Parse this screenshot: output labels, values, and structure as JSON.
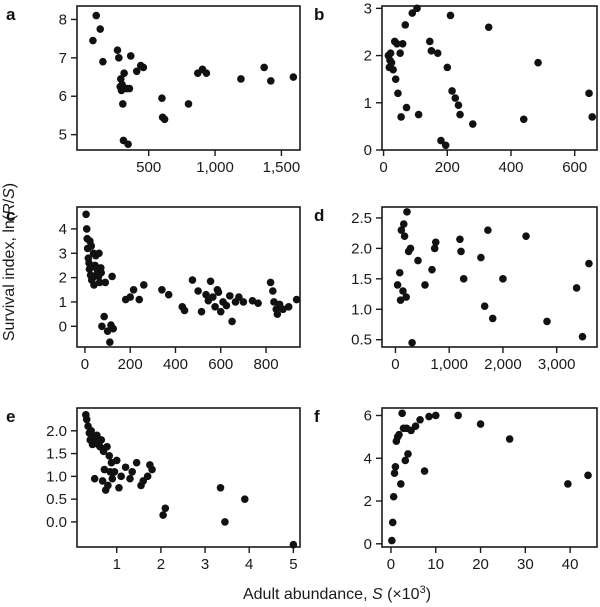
{
  "figure": {
    "ylabel_prefix": "Survival index, ln(",
    "ylabel_var1": "R",
    "ylabel_slash": "/",
    "ylabel_var2": "S",
    "ylabel_suffix": ")",
    "xlabel_prefix": "Adult abundance, ",
    "xlabel_var": "S",
    "xlabel_mid": " (×10",
    "xlabel_sup": "3",
    "xlabel_suffix": ")"
  },
  "chart_data": [
    {
      "panel": "a",
      "type": "scatter",
      "xlim": [
        -40,
        1640
      ],
      "ylim": [
        4.6,
        8.35
      ],
      "xticks": [
        500,
        1000,
        1500
      ],
      "xtick_labels": [
        "500",
        "1,000",
        "1,500"
      ],
      "yticks": [
        5,
        6,
        7,
        8
      ],
      "ytick_labels": [
        "5",
        "6",
        "7",
        "8"
      ],
      "points": [
        [
          80,
          7.45
        ],
        [
          105,
          8.1
        ],
        [
          135,
          7.75
        ],
        [
          155,
          6.9
        ],
        [
          265,
          7.2
        ],
        [
          275,
          7.0
        ],
        [
          285,
          6.25
        ],
        [
          290,
          6.45
        ],
        [
          295,
          6.15
        ],
        [
          300,
          6.3
        ],
        [
          305,
          5.8
        ],
        [
          310,
          4.85
        ],
        [
          315,
          6.6
        ],
        [
          335,
          6.2
        ],
        [
          345,
          4.75
        ],
        [
          355,
          6.2
        ],
        [
          365,
          7.05
        ],
        [
          410,
          6.65
        ],
        [
          440,
          6.8
        ],
        [
          460,
          6.75
        ],
        [
          600,
          5.95
        ],
        [
          605,
          5.45
        ],
        [
          620,
          5.4
        ],
        [
          800,
          5.8
        ],
        [
          870,
          6.6
        ],
        [
          905,
          6.7
        ],
        [
          935,
          6.6
        ],
        [
          1195,
          6.45
        ],
        [
          1370,
          6.75
        ],
        [
          1420,
          6.4
        ],
        [
          1590,
          6.5
        ]
      ]
    },
    {
      "panel": "b",
      "type": "scatter",
      "xlim": [
        -5,
        670
      ],
      "ylim": [
        0,
        3.05
      ],
      "xticks": [
        0,
        200,
        400,
        600
      ],
      "xtick_labels": [
        "0",
        "200",
        "400",
        "600"
      ],
      "yticks": [
        0,
        1,
        2,
        3
      ],
      "ytick_labels": [
        "0",
        "1",
        "2",
        "3"
      ],
      "points": [
        [
          15,
          2.0
        ],
        [
          18,
          1.75
        ],
        [
          20,
          1.9
        ],
        [
          22,
          2.05
        ],
        [
          25,
          1.85
        ],
        [
          30,
          1.7
        ],
        [
          35,
          2.3
        ],
        [
          38,
          1.5
        ],
        [
          42,
          2.25
        ],
        [
          45,
          1.2
        ],
        [
          52,
          2.05
        ],
        [
          55,
          0.7
        ],
        [
          60,
          2.25
        ],
        [
          68,
          2.65
        ],
        [
          72,
          0.9
        ],
        [
          90,
          2.9
        ],
        [
          105,
          3.0
        ],
        [
          110,
          0.75
        ],
        [
          145,
          2.3
        ],
        [
          150,
          2.1
        ],
        [
          170,
          2.05
        ],
        [
          180,
          0.2
        ],
        [
          195,
          0.1
        ],
        [
          200,
          1.75
        ],
        [
          210,
          2.85
        ],
        [
          215,
          1.25
        ],
        [
          225,
          1.1
        ],
        [
          235,
          0.95
        ],
        [
          240,
          0.75
        ],
        [
          280,
          0.55
        ],
        [
          330,
          2.6
        ],
        [
          440,
          0.65
        ],
        [
          485,
          1.85
        ],
        [
          645,
          1.2
        ],
        [
          655,
          0.7
        ]
      ]
    },
    {
      "panel": "c",
      "type": "scatter",
      "xlim": [
        -35,
        950
      ],
      "ylim": [
        -0.85,
        4.9
      ],
      "xticks": [
        0,
        200,
        400,
        600,
        800
      ],
      "xtick_labels": [
        "0",
        "200",
        "400",
        "600",
        "800"
      ],
      "yticks": [
        0,
        1,
        2,
        3,
        4
      ],
      "ytick_labels": [
        "0",
        "1",
        "2",
        "3",
        "4"
      ],
      "points": [
        [
          5,
          4.6
        ],
        [
          8,
          4.0
        ],
        [
          10,
          3.6
        ],
        [
          12,
          3.2
        ],
        [
          15,
          2.8
        ],
        [
          18,
          2.6
        ],
        [
          20,
          2.35
        ],
        [
          22,
          3.5
        ],
        [
          25,
          2.1
        ],
        [
          28,
          3.3
        ],
        [
          30,
          1.9
        ],
        [
          35,
          2.0
        ],
        [
          38,
          3.0
        ],
        [
          40,
          1.7
        ],
        [
          45,
          2.5
        ],
        [
          48,
          2.9
        ],
        [
          50,
          2.4
        ],
        [
          55,
          2.2
        ],
        [
          60,
          2.05
        ],
        [
          62,
          3.0
        ],
        [
          65,
          1.8
        ],
        [
          70,
          2.4
        ],
        [
          72,
          2.2
        ],
        [
          75,
          0.0
        ],
        [
          85,
          0.4
        ],
        [
          90,
          1.8
        ],
        [
          100,
          -0.2
        ],
        [
          110,
          -0.65
        ],
        [
          115,
          0.05
        ],
        [
          120,
          2.05
        ],
        [
          125,
          -0.1
        ],
        [
          180,
          1.1
        ],
        [
          200,
          1.2
        ],
        [
          215,
          1.5
        ],
        [
          240,
          1.1
        ],
        [
          260,
          1.7
        ],
        [
          340,
          1.5
        ],
        [
          370,
          1.3
        ],
        [
          430,
          0.8
        ],
        [
          440,
          0.65
        ],
        [
          475,
          1.9
        ],
        [
          500,
          1.45
        ],
        [
          515,
          0.6
        ],
        [
          535,
          1.3
        ],
        [
          545,
          1.05
        ],
        [
          555,
          1.85
        ],
        [
          565,
          1.2
        ],
        [
          575,
          0.8
        ],
        [
          585,
          1.5
        ],
        [
          590,
          1.4
        ],
        [
          600,
          0.6
        ],
        [
          610,
          1.0
        ],
        [
          625,
          0.85
        ],
        [
          640,
          1.25
        ],
        [
          650,
          0.2
        ],
        [
          665,
          1.0
        ],
        [
          680,
          1.2
        ],
        [
          700,
          1.0
        ],
        [
          740,
          1.05
        ],
        [
          765,
          0.95
        ],
        [
          820,
          1.8
        ],
        [
          830,
          1.45
        ],
        [
          835,
          1.0
        ],
        [
          845,
          0.7
        ],
        [
          850,
          0.5
        ],
        [
          860,
          0.9
        ],
        [
          875,
          0.7
        ],
        [
          900,
          0.8
        ],
        [
          935,
          1.1
        ]
      ]
    },
    {
      "panel": "d",
      "type": "scatter",
      "xlim": [
        -250,
        3750
      ],
      "ylim": [
        0.38,
        2.68
      ],
      "xticks": [
        0,
        1000,
        2000,
        3000
      ],
      "xtick_labels": [
        "0",
        "1,000",
        "2,000",
        "3,000"
      ],
      "yticks": [
        0.5,
        1.0,
        1.5,
        2.0,
        2.5
      ],
      "ytick_labels": [
        "0.5",
        "1.0",
        "1.5",
        "2.0",
        "2.5"
      ],
      "points": [
        [
          40,
          1.4
        ],
        [
          80,
          1.6
        ],
        [
          95,
          1.15
        ],
        [
          110,
          2.3
        ],
        [
          140,
          1.3
        ],
        [
          155,
          2.4
        ],
        [
          170,
          2.2
        ],
        [
          200,
          1.2
        ],
        [
          215,
          2.6
        ],
        [
          245,
          1.95
        ],
        [
          280,
          2.0
        ],
        [
          310,
          0.45
        ],
        [
          420,
          1.8
        ],
        [
          550,
          1.4
        ],
        [
          680,
          1.65
        ],
        [
          730,
          2.0
        ],
        [
          750,
          2.1
        ],
        [
          1200,
          2.15
        ],
        [
          1220,
          1.95
        ],
        [
          1270,
          1.5
        ],
        [
          1590,
          1.85
        ],
        [
          1660,
          1.05
        ],
        [
          1720,
          2.3
        ],
        [
          1810,
          0.85
        ],
        [
          2000,
          1.5
        ],
        [
          2430,
          2.2
        ],
        [
          2820,
          0.8
        ],
        [
          3370,
          1.35
        ],
        [
          3480,
          0.55
        ],
        [
          3600,
          1.75
        ]
      ]
    },
    {
      "panel": "e",
      "type": "scatter",
      "xlim": [
        0.1,
        5.15
      ],
      "ylim": [
        -0.55,
        2.5
      ],
      "xticks": [
        1,
        2,
        3,
        4,
        5
      ],
      "xtick_labels": [
        "1",
        "2",
        "3",
        "4",
        "5"
      ],
      "yticks": [
        0.0,
        0.5,
        1.0,
        1.5,
        2.0
      ],
      "ytick_labels": [
        "0.0",
        "0.5",
        "1.0",
        "1.5",
        "2.0"
      ],
      "points": [
        [
          0.3,
          2.35
        ],
        [
          0.32,
          2.25
        ],
        [
          0.35,
          2.1
        ],
        [
          0.38,
          1.95
        ],
        [
          0.4,
          1.8
        ],
        [
          0.42,
          2.0
        ],
        [
          0.45,
          1.7
        ],
        [
          0.48,
          1.85
        ],
        [
          0.5,
          0.95
        ],
        [
          0.52,
          1.75
        ],
        [
          0.55,
          1.9
        ],
        [
          0.58,
          1.7
        ],
        [
          0.62,
          1.65
        ],
        [
          0.65,
          1.8
        ],
        [
          0.68,
          0.9
        ],
        [
          0.7,
          1.55
        ],
        [
          0.72,
          1.15
        ],
        [
          0.75,
          0.7
        ],
        [
          0.78,
          1.65
        ],
        [
          0.8,
          0.8
        ],
        [
          0.83,
          1.45
        ],
        [
          0.85,
          1.1
        ],
        [
          0.88,
          1.3
        ],
        [
          0.9,
          0.95
        ],
        [
          0.95,
          1.1
        ],
        [
          1.0,
          1.35
        ],
        [
          1.05,
          0.75
        ],
        [
          1.1,
          1.0
        ],
        [
          1.2,
          1.2
        ],
        [
          1.3,
          0.95
        ],
        [
          1.35,
          1.1
        ],
        [
          1.45,
          1.3
        ],
        [
          1.55,
          0.8
        ],
        [
          1.6,
          0.9
        ],
        [
          1.7,
          1.0
        ],
        [
          1.75,
          1.25
        ],
        [
          1.8,
          1.15
        ],
        [
          2.05,
          0.15
        ],
        [
          2.1,
          0.3
        ],
        [
          3.35,
          0.75
        ],
        [
          3.45,
          0.0
        ],
        [
          3.9,
          0.5
        ],
        [
          5.0,
          -0.5
        ]
      ]
    },
    {
      "panel": "f",
      "type": "scatter",
      "xlim": [
        -2,
        46
      ],
      "ylim": [
        -0.15,
        6.35
      ],
      "xticks": [
        0,
        10,
        20,
        30,
        40
      ],
      "xtick_labels": [
        "0",
        "10",
        "20",
        "30",
        "40"
      ],
      "yticks": [
        0,
        2,
        4,
        6
      ],
      "ytick_labels": [
        "0",
        "2",
        "4",
        "6"
      ],
      "points": [
        [
          0.2,
          0.15
        ],
        [
          0.4,
          1.0
        ],
        [
          0.6,
          2.2
        ],
        [
          0.8,
          3.3
        ],
        [
          1.0,
          3.6
        ],
        [
          1.2,
          4.8
        ],
        [
          1.5,
          5.0
        ],
        [
          1.8,
          5.1
        ],
        [
          2.2,
          2.8
        ],
        [
          2.5,
          6.1
        ],
        [
          2.8,
          5.4
        ],
        [
          3.2,
          3.9
        ],
        [
          3.5,
          5.4
        ],
        [
          3.8,
          4.2
        ],
        [
          4.5,
          5.3
        ],
        [
          5.5,
          5.5
        ],
        [
          6.5,
          5.8
        ],
        [
          7.5,
          3.4
        ],
        [
          8.5,
          5.95
        ],
        [
          10,
          6.0
        ],
        [
          15,
          6.0
        ],
        [
          20,
          5.6
        ],
        [
          26.5,
          4.9
        ],
        [
          39.5,
          2.8
        ],
        [
          44,
          3.2
        ]
      ]
    }
  ]
}
